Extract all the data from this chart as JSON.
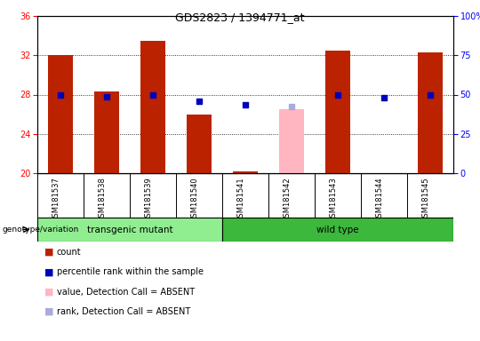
{
  "title": "GDS2823 / 1394771_at",
  "samples": [
    "GSM181537",
    "GSM181538",
    "GSM181539",
    "GSM181540",
    "GSM181541",
    "GSM181542",
    "GSM181543",
    "GSM181544",
    "GSM181545"
  ],
  "count_values": [
    32.0,
    28.3,
    33.5,
    26.0,
    20.2,
    null,
    32.5,
    null,
    32.3
  ],
  "rank_values": [
    28.0,
    27.8,
    28.0,
    27.3,
    27.0,
    null,
    28.0,
    27.7,
    28.0
  ],
  "absent_value": [
    null,
    null,
    null,
    null,
    null,
    26.5,
    null,
    null,
    null
  ],
  "absent_rank": [
    null,
    null,
    null,
    null,
    null,
    26.8,
    null,
    null,
    null
  ],
  "ylim": [
    20,
    36
  ],
  "yticks_left": [
    20,
    24,
    28,
    32,
    36
  ],
  "yticks_right": [
    0,
    25,
    50,
    75,
    100
  ],
  "groups": [
    {
      "label": "transgenic mutant",
      "start": 0,
      "end": 3,
      "color": "#90EE90"
    },
    {
      "label": "wild type",
      "start": 4,
      "end": 8,
      "color": "#3CB83C"
    }
  ],
  "bar_color": "#BB2200",
  "rank_color": "#0000BB",
  "absent_bar_color": "#FFB6C1",
  "absent_rank_color": "#AAAADD",
  "bg_color": "#C8C8C8",
  "legend_items": [
    {
      "label": "count",
      "color": "#BB2200"
    },
    {
      "label": "percentile rank within the sample",
      "color": "#0000BB"
    },
    {
      "label": "value, Detection Call = ABSENT",
      "color": "#FFB6C1"
    },
    {
      "label": "rank, Detection Call = ABSENT",
      "color": "#AAAADD"
    }
  ]
}
